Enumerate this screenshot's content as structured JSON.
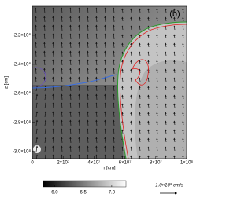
{
  "chart_data": {
    "type": "field",
    "title": "(b)",
    "x_label": "r [cm]",
    "y_label": "z [cm]",
    "xlim": [
      0,
      100000000
    ],
    "ylim": [
      -305000000,
      -200000000
    ],
    "xticks": [
      0,
      {
        "value": 20000000,
        "label": "2×10⁷"
      },
      {
        "value": 40000000,
        "label": "4×10⁷"
      },
      {
        "value": 60000000,
        "label": "6×10⁷"
      },
      {
        "value": 80000000,
        "label": "8×10⁷"
      },
      {
        "value": 100000000,
        "label": "1×10⁸"
      }
    ],
    "yticks": [
      {
        "value": -220000000,
        "label": "-2.2×10⁸"
      },
      {
        "value": -240000000,
        "label": "-2.4×10⁸"
      },
      {
        "value": -260000000,
        "label": "-2.6×10⁸"
      },
      {
        "value": -280000000,
        "label": "-2.8×10⁸"
      },
      {
        "value": -300000000,
        "label": "-3.0×10⁸"
      }
    ],
    "colorbar": {
      "lim": [
        5.8,
        7.25
      ],
      "ticks": [
        {
          "value": 6,
          "label": "6.0"
        },
        6.5,
        {
          "value": 7,
          "label": "7.0"
        }
      ]
    },
    "arrow_key": "1.0×10⁸ cm/s"
  }
}
